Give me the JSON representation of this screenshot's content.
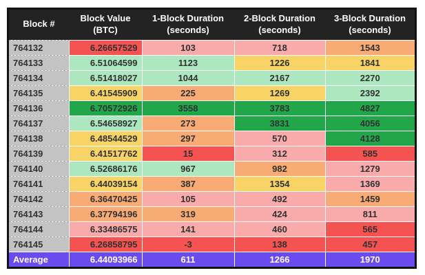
{
  "chart_data": {
    "type": "table",
    "title": "",
    "columns": [
      "Block #",
      "Block Value (BTC)",
      "1-Block Duration (seconds)",
      "2-Block Duration (seconds)",
      "3-Block Duration (seconds)"
    ],
    "rows": [
      [
        "764132",
        6.26657529,
        103,
        718,
        1543
      ],
      [
        "764133",
        6.51064599,
        1123,
        1226,
        1841
      ],
      [
        "764134",
        6.51418027,
        1044,
        2167,
        2270
      ],
      [
        "764135",
        6.41545909,
        225,
        1269,
        2392
      ],
      [
        "764136",
        6.70572926,
        3558,
        3783,
        4827
      ],
      [
        "764137",
        6.54658927,
        273,
        3831,
        4056
      ],
      [
        "764138",
        6.48544529,
        297,
        570,
        4128
      ],
      [
        "764139",
        6.41517762,
        15,
        312,
        585
      ],
      [
        "764140",
        6.52686176,
        967,
        982,
        1279
      ],
      [
        "764141",
        6.44039154,
        387,
        1354,
        1369
      ],
      [
        "764142",
        6.36470425,
        105,
        492,
        1459
      ],
      [
        "764143",
        6.37794196,
        319,
        424,
        811
      ],
      [
        "764144",
        6.33486575,
        141,
        460,
        565
      ],
      [
        "764145",
        6.26858795,
        -3,
        138,
        457
      ]
    ],
    "average_row": [
      "Average",
      6.44093966,
      611,
      1266,
      1970
    ],
    "legend_position": "none",
    "grid": "dashed-cell-separators"
  },
  "palette": {
    "page_bg": "#ffffff",
    "border": "#121212",
    "header_bg": "#232323",
    "header_text": "#ffffff",
    "cell_text": "#313131",
    "gray": "#c3c3c3",
    "red": "#f45351",
    "pink": "#f9abab",
    "orange": "#f8ab74",
    "yellow": "#f8d365",
    "lightgreen": "#ace7c0",
    "darkgreen": "#21a64a",
    "purple": "#6a4bf0"
  },
  "table": {
    "headers": [
      {
        "label": "Block #",
        "sublabel": ""
      },
      {
        "label": "Block Value",
        "sublabel": "(BTC)"
      },
      {
        "label": "1-Block Duration",
        "sublabel": "(seconds)"
      },
      {
        "label": "2-Block Duration",
        "sublabel": "(seconds)"
      },
      {
        "label": "3-Block Duration",
        "sublabel": "(seconds)"
      }
    ],
    "rows": [
      {
        "block": "764132",
        "value": "6.26657529",
        "d1": "103",
        "d2": "718",
        "d3": "1543",
        "colors": [
          "red",
          "pink",
          "pink",
          "orange"
        ]
      },
      {
        "block": "764133",
        "value": "6.51064599",
        "d1": "1123",
        "d2": "1226",
        "d3": "1841",
        "colors": [
          "lightgreen",
          "lightgreen",
          "yellow",
          "yellow"
        ]
      },
      {
        "block": "764134",
        "value": "6.51418027",
        "d1": "1044",
        "d2": "2167",
        "d3": "2270",
        "colors": [
          "lightgreen",
          "lightgreen",
          "lightgreen",
          "lightgreen"
        ]
      },
      {
        "block": "764135",
        "value": "6.41545909",
        "d1": "225",
        "d2": "1269",
        "d3": "2392",
        "colors": [
          "yellow",
          "orange",
          "yellow",
          "lightgreen"
        ]
      },
      {
        "block": "764136",
        "value": "6.70572926",
        "d1": "3558",
        "d2": "3783",
        "d3": "4827",
        "colors": [
          "darkgreen",
          "darkgreen",
          "darkgreen",
          "darkgreen"
        ]
      },
      {
        "block": "764137",
        "value": "6.54658927",
        "d1": "273",
        "d2": "3831",
        "d3": "4056",
        "colors": [
          "lightgreen",
          "orange",
          "darkgreen",
          "darkgreen"
        ]
      },
      {
        "block": "764138",
        "value": "6.48544529",
        "d1": "297",
        "d2": "570",
        "d3": "4128",
        "colors": [
          "yellow",
          "orange",
          "pink",
          "darkgreen"
        ]
      },
      {
        "block": "764139",
        "value": "6.41517762",
        "d1": "15",
        "d2": "312",
        "d3": "585",
        "colors": [
          "yellow",
          "red",
          "pink",
          "red"
        ]
      },
      {
        "block": "764140",
        "value": "6.52686176",
        "d1": "967",
        "d2": "982",
        "d3": "1279",
        "colors": [
          "lightgreen",
          "lightgreen",
          "orange",
          "pink"
        ]
      },
      {
        "block": "764141",
        "value": "6.44039154",
        "d1": "387",
        "d2": "1354",
        "d3": "1369",
        "colors": [
          "yellow",
          "orange",
          "yellow",
          "pink"
        ]
      },
      {
        "block": "764142",
        "value": "6.36470425",
        "d1": "105",
        "d2": "492",
        "d3": "1459",
        "colors": [
          "orange",
          "pink",
          "pink",
          "orange"
        ]
      },
      {
        "block": "764143",
        "value": "6.37794196",
        "d1": "319",
        "d2": "424",
        "d3": "811",
        "colors": [
          "orange",
          "orange",
          "pink",
          "pink"
        ]
      },
      {
        "block": "764144",
        "value": "6.33486575",
        "d1": "141",
        "d2": "460",
        "d3": "565",
        "colors": [
          "pink",
          "pink",
          "pink",
          "red"
        ]
      },
      {
        "block": "764145",
        "value": "6.26858795",
        "d1": "-3",
        "d2": "138",
        "d3": "457",
        "colors": [
          "red",
          "red",
          "red",
          "red"
        ]
      }
    ],
    "average": {
      "label": "Average",
      "value": "6.44093966",
      "d1": "611",
      "d2": "1266",
      "d3": "1970"
    }
  }
}
